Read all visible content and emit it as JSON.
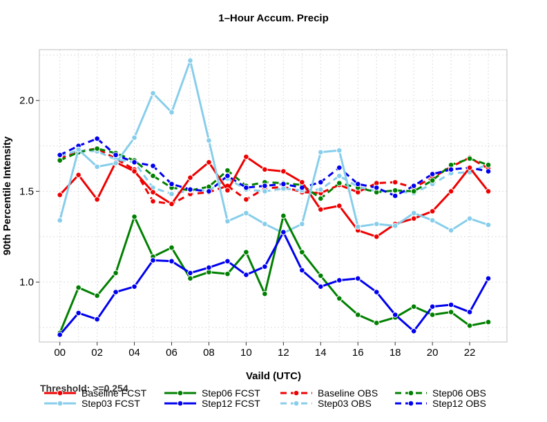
{
  "chart_data": {
    "type": "line",
    "title": "1–Hour Accum. Precip",
    "xlabel": "Vaild (UTC)",
    "ylabel": "90th Percentile Intensity",
    "threshold_label": "Threshold: >=0.254",
    "x": [
      0,
      1,
      2,
      3,
      4,
      5,
      6,
      7,
      8,
      9,
      10,
      11,
      12,
      13,
      14,
      15,
      16,
      17,
      18,
      19,
      20,
      21,
      22,
      23
    ],
    "x_ticks": [
      0,
      2,
      4,
      6,
      8,
      10,
      12,
      14,
      16,
      18,
      20,
      22
    ],
    "x_tick_labels": [
      "00",
      "02",
      "04",
      "06",
      "08",
      "10",
      "12",
      "14",
      "16",
      "18",
      "20",
      "22"
    ],
    "xlim": [
      -1.1,
      24
    ],
    "y_ticks": [
      1.0,
      1.5,
      2.0
    ],
    "y_tick_labels": [
      "1.0",
      "1.5",
      "2.0"
    ],
    "ylim": [
      0.67,
      2.28
    ],
    "grid": true,
    "legend_position": "bottom",
    "series": [
      {
        "name": "Baseline FCST",
        "color": "#ee0000",
        "dash": false,
        "values": [
          1.48,
          1.59,
          1.455,
          1.66,
          1.61,
          1.495,
          1.43,
          1.575,
          1.66,
          1.505,
          1.69,
          1.62,
          1.61,
          1.55,
          1.4,
          1.42,
          1.285,
          1.25,
          1.32,
          1.35,
          1.39,
          1.5,
          1.63,
          1.5
        ]
      },
      {
        "name": "Step03 FCST",
        "color": "#87ceeb",
        "dash": false,
        "values": [
          1.34,
          1.73,
          1.635,
          1.655,
          1.795,
          2.04,
          1.935,
          2.22,
          1.78,
          1.335,
          1.38,
          1.32,
          1.27,
          1.32,
          1.715,
          1.725,
          1.305,
          1.32,
          1.31,
          1.38,
          1.34,
          1.285,
          1.35,
          1.315
        ]
      },
      {
        "name": "Step06 FCST",
        "color": "#008000",
        "dash": false,
        "values": [
          0.72,
          0.97,
          0.925,
          1.05,
          1.36,
          1.14,
          1.19,
          1.02,
          1.055,
          1.045,
          1.165,
          0.935,
          1.365,
          1.165,
          1.035,
          0.91,
          0.82,
          0.775,
          0.805,
          0.865,
          0.82,
          0.835,
          0.76,
          0.78
        ]
      },
      {
        "name": "Step12 FCST",
        "color": "#0000ee",
        "dash": false,
        "values": [
          0.71,
          0.83,
          0.795,
          0.945,
          0.975,
          1.12,
          1.115,
          1.05,
          1.08,
          1.115,
          1.04,
          1.085,
          1.275,
          1.065,
          0.975,
          1.01,
          1.02,
          0.945,
          0.82,
          0.73,
          0.865,
          0.875,
          0.835,
          1.02
        ]
      },
      {
        "name": "Baseline OBS",
        "color": "#ee0000",
        "dash": true,
        "values": [
          1.68,
          1.72,
          1.735,
          1.68,
          1.62,
          1.445,
          1.43,
          1.485,
          1.495,
          1.53,
          1.455,
          1.515,
          1.525,
          1.495,
          1.49,
          1.535,
          1.495,
          1.545,
          1.55,
          1.52,
          1.575,
          1.635,
          1.685,
          1.625
        ]
      },
      {
        "name": "Step03 OBS",
        "color": "#87ceeb",
        "dash": true,
        "values": [
          1.695,
          1.725,
          1.72,
          1.675,
          1.66,
          1.52,
          1.485,
          1.505,
          1.505,
          1.57,
          1.51,
          1.5,
          1.515,
          1.505,
          1.51,
          1.585,
          1.525,
          1.5,
          1.5,
          1.49,
          1.54,
          1.6,
          1.605,
          1.65
        ]
      },
      {
        "name": "Step06 OBS",
        "color": "#008000",
        "dash": true,
        "values": [
          1.67,
          1.715,
          1.735,
          1.71,
          1.67,
          1.585,
          1.52,
          1.505,
          1.525,
          1.615,
          1.53,
          1.55,
          1.545,
          1.535,
          1.46,
          1.545,
          1.52,
          1.495,
          1.505,
          1.5,
          1.56,
          1.645,
          1.68,
          1.645
        ]
      },
      {
        "name": "Step12 OBS",
        "color": "#0000ee",
        "dash": true,
        "values": [
          1.7,
          1.75,
          1.79,
          1.7,
          1.66,
          1.64,
          1.54,
          1.51,
          1.5,
          1.585,
          1.52,
          1.53,
          1.54,
          1.52,
          1.55,
          1.63,
          1.54,
          1.52,
          1.475,
          1.53,
          1.595,
          1.62,
          1.63,
          1.61
        ]
      }
    ]
  }
}
